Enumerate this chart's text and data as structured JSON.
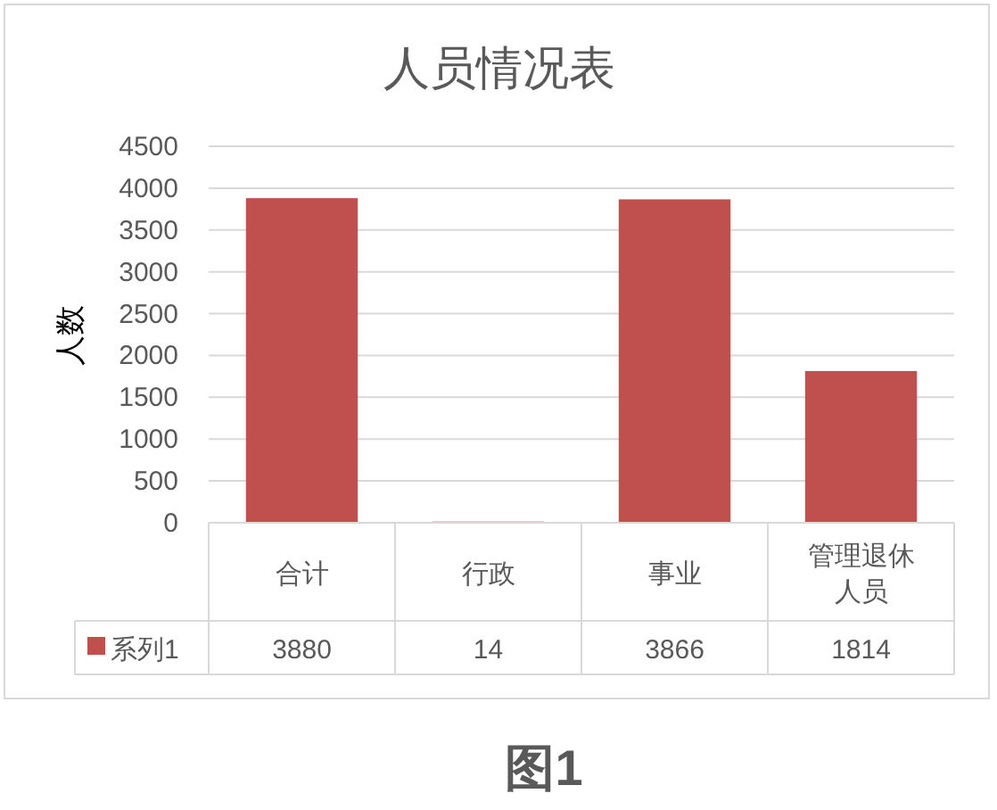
{
  "chart_data": {
    "type": "bar",
    "title": "人员情况表",
    "ylabel": "人数",
    "categories": [
      "合计",
      "行政",
      "事业",
      "管理退休人员"
    ],
    "series": [
      {
        "name": "系列1",
        "color": "#c0504d",
        "values": [
          3880,
          14,
          3866,
          1814
        ]
      }
    ],
    "ylim": [
      0,
      4500
    ],
    "yticks": [
      0,
      500,
      1000,
      1500,
      2000,
      2500,
      3000,
      3500,
      4000,
      4500
    ],
    "grid": "y",
    "legend": "bottom",
    "data_labels": true,
    "annotations": [
      "图1"
    ]
  }
}
